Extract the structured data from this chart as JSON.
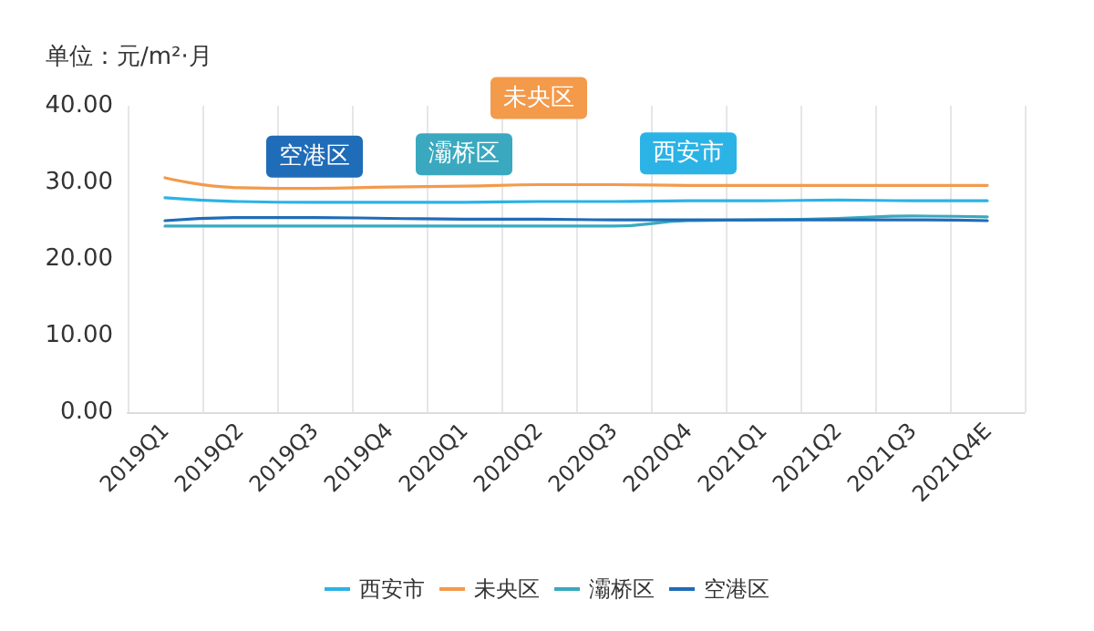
{
  "chart_data": {
    "type": "line",
    "ylabel": "单位：元/m²·月",
    "categories": [
      "2019Q1",
      "2019Q2",
      "2019Q3",
      "2019Q4",
      "2020Q1",
      "2020Q2",
      "2020Q3",
      "2020Q4",
      "2021Q1",
      "2021Q2",
      "2021Q3",
      "2021Q4E"
    ],
    "series": [
      {
        "name": "西安市",
        "color": "#2bb3e6",
        "values": [
          28.0,
          27.5,
          27.4,
          27.4,
          27.4,
          27.5,
          27.5,
          27.6,
          27.6,
          27.7,
          27.6,
          27.6
        ]
      },
      {
        "name": "未央区",
        "color": "#f39a4b",
        "values": [
          30.6,
          29.3,
          29.2,
          29.4,
          29.5,
          29.7,
          29.7,
          29.6,
          29.6,
          29.6,
          29.6,
          29.6
        ]
      },
      {
        "name": "灞桥区",
        "color": "#3aa9bf",
        "values": [
          24.3,
          24.3,
          24.3,
          24.3,
          24.3,
          24.3,
          24.3,
          25.0,
          25.1,
          25.3,
          25.6,
          25.5
        ]
      },
      {
        "name": "空港区",
        "color": "#1f6cb8",
        "values": [
          25.0,
          25.4,
          25.4,
          25.3,
          25.2,
          25.2,
          25.1,
          25.1,
          25.1,
          25.1,
          25.1,
          25.0
        ]
      }
    ],
    "ylim": [
      0,
      40
    ],
    "yticks": [
      {
        "value": 0,
        "label": "0.00"
      },
      {
        "value": 10,
        "label": "10.00"
      },
      {
        "value": 20,
        "label": "20.00"
      },
      {
        "value": 30,
        "label": "30.00"
      },
      {
        "value": 40,
        "label": "40.00"
      }
    ],
    "grid": "x",
    "legend": "bottom",
    "marker": "none",
    "line_style": "solid"
  }
}
